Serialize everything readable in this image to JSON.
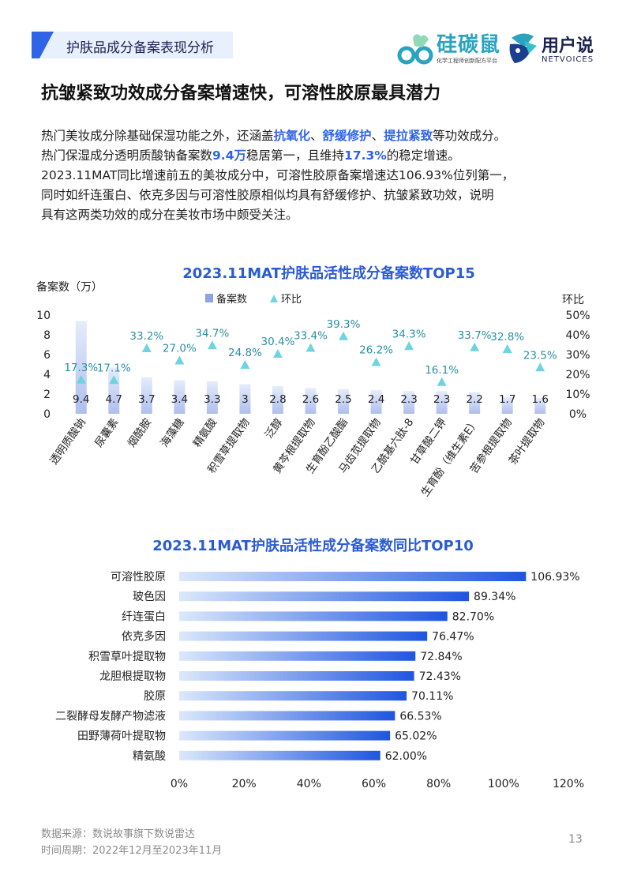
{
  "header": {
    "section_title": "护肤品成分备案表现分析",
    "logo1_name": "硅碳鼠",
    "logo1_sub": "化学工程师创新配方平台",
    "logo2_name": "用户说",
    "logo2_sub": "NETVOICES"
  },
  "page_title": "抗皱紧致功效成分备案增速快，可溶性胶原最具潜力",
  "paragraph": {
    "l1_a": "热门美妆成分除基础保湿功能之外，还涵盖",
    "l1_h1": "抗氧化",
    "l1_s1": "、",
    "l1_h2": "舒缓修护",
    "l1_s2": "、",
    "l1_h3": "提拉紧致",
    "l1_b": "等功效成分。",
    "l2_a": "热门保湿成分透明质酸钠备案数",
    "l2_h1": "9.4万",
    "l2_b": "稳居第一，且维持",
    "l2_h2": "17.3%",
    "l2_c": "的稳定增速。",
    "l3": "2023.11MAT同比增速前五的美妆成分中，可溶性胶原备案增速达106.93%位列第一，",
    "l4": "同时如纤连蛋白、依克多因与可溶性胶原相似均具有舒缓修护、抗皱紧致功效，说明",
    "l5": "具有这两类功效的成分在美妆市场中颇受关注。"
  },
  "chart_data": [
    {
      "type": "bar",
      "title": "2023.11MAT护肤品活性成分备案数TOP15",
      "ylabel": "备案数（万）",
      "y2label": "环比",
      "legend": [
        "备案数",
        "环比"
      ],
      "legend_placement": "top",
      "ylim": [
        0,
        10
      ],
      "yticks": [
        "0",
        "2",
        "4",
        "6",
        "8",
        "10"
      ],
      "y2lim": [
        0,
        50
      ],
      "y2ticks": [
        "0%",
        "10%",
        "20%",
        "30%",
        "40%",
        "50%"
      ],
      "categories": [
        "透明质酸钠",
        "尿囊素",
        "烟酰胺",
        "海藻糖",
        "精氨酸",
        "积雪草提取物",
        "泛醇",
        "黄芩根提取物",
        "生育酚乙酸酯",
        "马齿苋提取物",
        "乙酰基六肽-8",
        "甘草酸二钾",
        "生育酚（维生素E）",
        "苦参根提取物",
        "茶叶提取物"
      ],
      "values": [
        9.4,
        4.7,
        3.7,
        3.4,
        3.3,
        3,
        2.8,
        2.6,
        2.5,
        2.4,
        2.3,
        2.3,
        2.2,
        1.7,
        1.6
      ],
      "value_labels": [
        "9.4",
        "4.7",
        "3.7",
        "3.4",
        "3.3",
        "3",
        "2.8",
        "2.6",
        "2.5",
        "2.4",
        "2.3",
        "2.3",
        "2.2",
        "1.7",
        "1.6"
      ],
      "mom_pct": [
        17.3,
        17.1,
        33.2,
        27.0,
        34.7,
        24.8,
        30.4,
        33.4,
        39.3,
        26.2,
        34.3,
        16.1,
        33.7,
        32.8,
        23.5
      ],
      "mom_labels": [
        "17.3%",
        "17.1%",
        "33.2%",
        "27.0%",
        "34.7%",
        "24.8%",
        "30.4%",
        "33.4%",
        "39.3%",
        "26.2%",
        "34.3%",
        "16.1%",
        "33.7%",
        "32.8%",
        "23.5%"
      ],
      "colors": {
        "bar": "#c9d6f7",
        "marker": "#6fd3e0",
        "mom_label": "#2a8fa3"
      }
    },
    {
      "type": "bar",
      "orientation": "horizontal",
      "title": "2023.11MAT护肤品活性成分备案数同比TOP10",
      "categories": [
        "可溶性胶原",
        "玻色因",
        "纤连蛋白",
        "依克多因",
        "积雪草叶提取物",
        "龙胆根提取物",
        "胶原",
        "二裂酵母发酵产物滤液",
        "田野薄荷叶提取物",
        "精氨酸"
      ],
      "values": [
        106.93,
        89.34,
        82.7,
        76.47,
        72.84,
        72.43,
        70.11,
        66.53,
        65.02,
        62.0
      ],
      "value_labels": [
        "106.93%",
        "89.34%",
        "82.70%",
        "76.47%",
        "72.84%",
        "72.43%",
        "70.11%",
        "66.53%",
        "65.02%",
        "62.00%"
      ],
      "xlim": [
        0,
        120
      ],
      "xticks": [
        "0%",
        "20%",
        "40%",
        "60%",
        "80%",
        "100%",
        "120%"
      ],
      "colors": {
        "bar_start": "#dbe8fb",
        "bar_end": "#1f55e0"
      }
    }
  ],
  "footer": {
    "source": "数据来源：数说故事旗下数说雷达",
    "period": "时间周期：2022年12月至2023年11月",
    "page_number": "13"
  }
}
